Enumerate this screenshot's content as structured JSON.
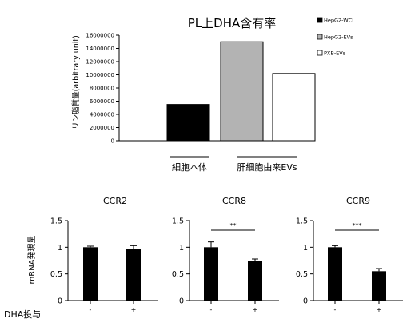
{
  "chart_data": [
    {
      "type": "bar",
      "title": "PL上DHA含有率",
      "ylabel": "リン脂質量(arbitrary unit)",
      "ylim": [
        0,
        16000000
      ],
      "yticks": [
        "0",
        "2000000",
        "4000000",
        "6000000",
        "8000000",
        "10000000",
        "12000000",
        "14000000",
        "16000000"
      ],
      "categories": [
        "HepG2-WCL",
        "HepG2-EVs",
        "PXB-EVs"
      ],
      "values": [
        5500000,
        15000000,
        10200000
      ],
      "colors": [
        "#000000",
        "#b3b3b3",
        "#ffffff"
      ],
      "legend": [
        "HepG2-WCL",
        "HepG2-EVs",
        "PXB-EVs"
      ],
      "legend_position": "right",
      "group_labels": [
        "細胞本体",
        "肝細胞由来EVs"
      ]
    },
    {
      "type": "bar",
      "title": "CCR2",
      "ylabel": "mRNA発現量",
      "ylim": [
        0,
        1.5
      ],
      "yticks": [
        "0",
        "0.5",
        "1",
        "1.5"
      ],
      "categories": [
        "-",
        "+"
      ],
      "values": [
        1.0,
        0.97
      ],
      "errors": [
        0.02,
        0.06
      ],
      "significance": ""
    },
    {
      "type": "bar",
      "title": "CCR8",
      "ylim": [
        0,
        1.5
      ],
      "yticks": [
        "0",
        "0.5",
        "1",
        "1.5"
      ],
      "categories": [
        "-",
        "+"
      ],
      "values": [
        1.0,
        0.75
      ],
      "errors": [
        0.1,
        0.03
      ],
      "significance": "**"
    },
    {
      "type": "bar",
      "title": "CCR9",
      "ylim": [
        0,
        1.5
      ],
      "yticks": [
        "0",
        "0.5",
        "1",
        "1.5"
      ],
      "categories": [
        "-",
        "+"
      ],
      "values": [
        1.0,
        0.55
      ],
      "errors": [
        0.03,
        0.05
      ],
      "significance": "***"
    }
  ],
  "xaxis_label": "DHA投与"
}
